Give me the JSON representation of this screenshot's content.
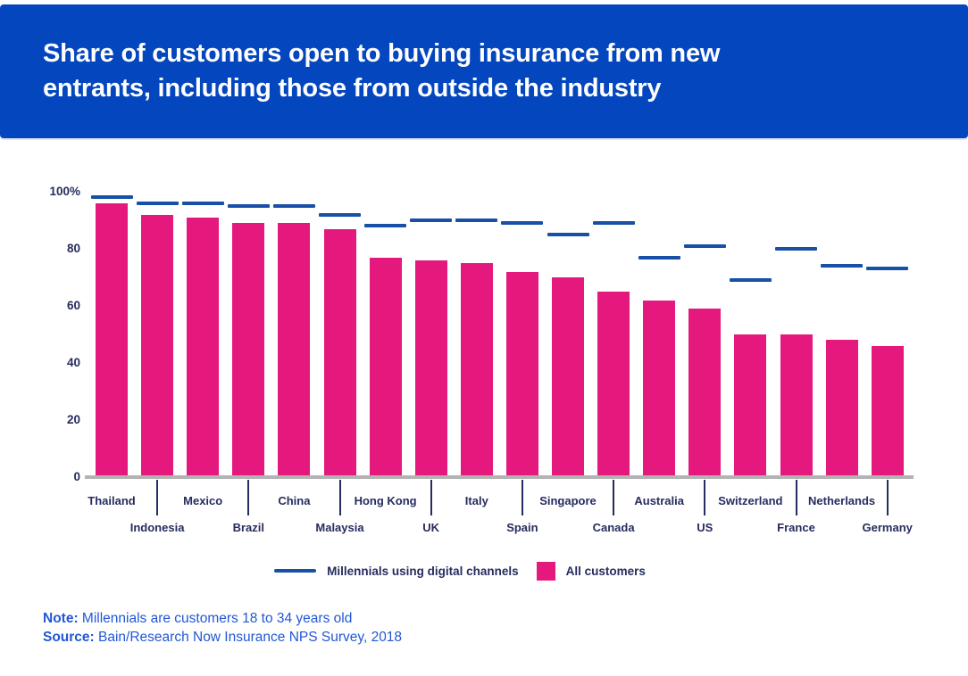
{
  "header": {
    "title": "Share of customers open to buying insurance from new entrants, including those from outside the industry"
  },
  "legend": {
    "millennials_label": "Millennials using digital channels",
    "all_customers_label": "All customers"
  },
  "footnote": {
    "note_label": "Note:",
    "note_text": " Millennials are customers 18 to 34 years old",
    "source_label": "Source:",
    "source_text": " Bain/Research Now Insurance NPS Survey, 2018"
  },
  "colors": {
    "header_bg": "#0446BE",
    "bar_pink": "#E5197D",
    "dash_blue": "#1750A6",
    "text_navy": "#262C5E",
    "note_blue": "#2257D6",
    "axis_gray": "#B3B3B3"
  },
  "chart_data": {
    "type": "bar",
    "title": "Share of customers open to buying insurance from new entrants, including those from outside the industry",
    "categories": [
      "Thailand",
      "Indonesia",
      "Mexico",
      "Brazil",
      "China",
      "Malaysia",
      "Hong Kong",
      "UK",
      "Italy",
      "Spain",
      "Singapore",
      "Canada",
      "Australia",
      "US",
      "Switzerland",
      "France",
      "Netherlands",
      "Germany"
    ],
    "series": [
      {
        "name": "Millennials using digital channels",
        "marker": "dash",
        "values": [
          98,
          96,
          96,
          95,
          95,
          92,
          88,
          90,
          90,
          89,
          85,
          89,
          77,
          81,
          69,
          80,
          74,
          73
        ]
      },
      {
        "name": "All customers",
        "marker": "bar",
        "values": [
          96,
          92,
          91,
          89,
          89,
          87,
          77,
          76,
          75,
          72,
          70,
          65,
          62,
          59,
          50,
          50,
          48,
          46
        ]
      }
    ],
    "ylim": [
      0,
      100
    ],
    "y_ticks": [
      {
        "value": 100,
        "label": "100%"
      },
      {
        "value": 80,
        "label": "80"
      },
      {
        "value": 60,
        "label": "60"
      },
      {
        "value": 40,
        "label": "40"
      },
      {
        "value": 20,
        "label": "20"
      },
      {
        "value": 0,
        "label": "0"
      }
    ],
    "grid": false,
    "legend_position": "bottom",
    "x_label_layout": "staggered-two-rows"
  }
}
